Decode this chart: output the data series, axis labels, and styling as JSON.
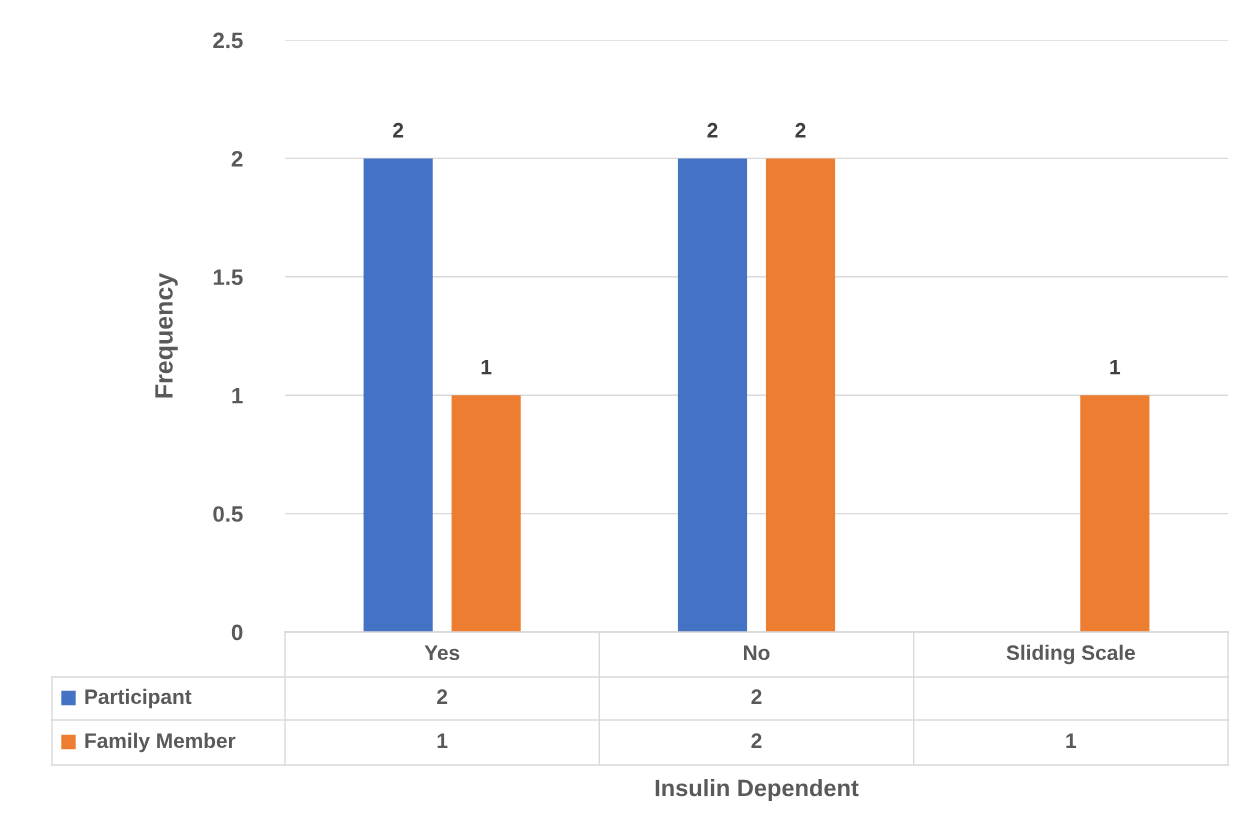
{
  "chart_data": {
    "type": "bar",
    "xlabel": "Insulin Dependent",
    "ylabel": "Frequency",
    "categories": [
      "Yes",
      "No",
      "Sliding Scale"
    ],
    "series": [
      {
        "name": "Participant",
        "color": "#4472c4",
        "values": [
          2,
          2,
          null
        ],
        "value_labels": [
          "2",
          "2",
          null
        ]
      },
      {
        "name": "Family Member",
        "color": "#ed7d31",
        "values": [
          1,
          2,
          1
        ],
        "value_labels": [
          "1",
          "2",
          "1"
        ]
      }
    ],
    "ylim": [
      0,
      2.5
    ],
    "yticks": [
      0,
      0.5,
      1,
      1.5,
      2,
      2.5
    ],
    "grid": "y",
    "data_labels": true,
    "legend": "bottom"
  }
}
